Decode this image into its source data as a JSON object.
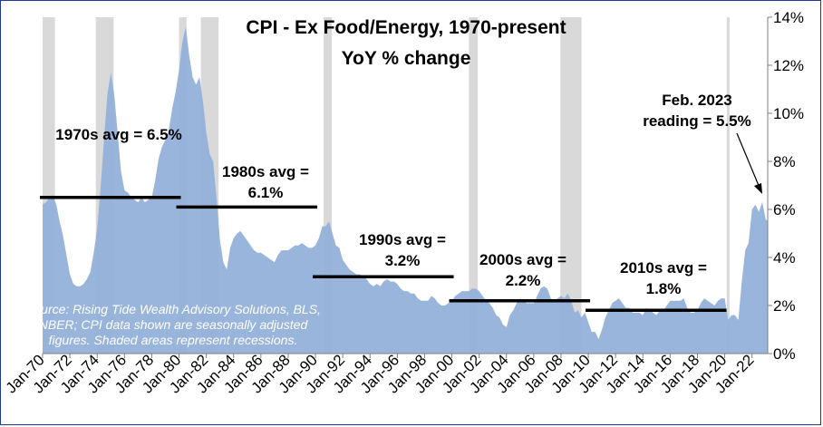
{
  "chart_data": {
    "type": "area",
    "title": "CPI - Ex Food/Energy, 1970-present",
    "subtitle": "YoY % change",
    "x_range": [
      1970.0,
      2023.15
    ],
    "ylim": [
      0,
      14
    ],
    "y_ticks": [
      "0%",
      "2%",
      "4%",
      "6%",
      "8%",
      "10%",
      "12%",
      "14%"
    ],
    "y_tick_values": [
      0,
      2,
      4,
      6,
      8,
      10,
      12,
      14
    ],
    "x_ticks": [
      "Jan-70",
      "Jan-72",
      "Jan-74",
      "Jan-76",
      "Jan-78",
      "Jan-80",
      "Jan-82",
      "Jan-84",
      "Jan-86",
      "Jan-88",
      "Jan-90",
      "Jan-92",
      "Jan-94",
      "Jan-96",
      "Jan-98",
      "Jan-00",
      "Jan-02",
      "Jan-04",
      "Jan-06",
      "Jan-08",
      "Jan-10",
      "Jan-12",
      "Jan-14",
      "Jan-16",
      "Jan-18",
      "Jan-20",
      "Jan-22"
    ],
    "x_tick_values": [
      1970,
      1972,
      1974,
      1976,
      1978,
      1980,
      1982,
      1984,
      1986,
      1988,
      1990,
      1992,
      1994,
      1996,
      1998,
      2000,
      2002,
      2004,
      2006,
      2008,
      2010,
      2012,
      2014,
      2016,
      2018,
      2020,
      2022
    ],
    "series": [
      {
        "values": [
          [
            1970.0,
            6.2
          ],
          [
            1970.25,
            6.3
          ],
          [
            1970.5,
            6.5
          ],
          [
            1970.75,
            6.6
          ],
          [
            1971.0,
            6.2
          ],
          [
            1971.25,
            5.5
          ],
          [
            1971.5,
            4.9
          ],
          [
            1971.75,
            4.1
          ],
          [
            1972.0,
            3.3
          ],
          [
            1972.25,
            2.9
          ],
          [
            1972.5,
            2.8
          ],
          [
            1972.75,
            2.8
          ],
          [
            1973.0,
            2.9
          ],
          [
            1973.25,
            3.1
          ],
          [
            1973.5,
            3.4
          ],
          [
            1973.75,
            4.2
          ],
          [
            1974.0,
            5.2
          ],
          [
            1974.25,
            6.9
          ],
          [
            1974.5,
            8.9
          ],
          [
            1974.75,
            10.8
          ],
          [
            1975.0,
            11.7
          ],
          [
            1975.25,
            10.8
          ],
          [
            1975.5,
            9.2
          ],
          [
            1975.75,
            7.6
          ],
          [
            1976.0,
            6.8
          ],
          [
            1976.25,
            6.7
          ],
          [
            1976.5,
            6.5
          ],
          [
            1976.75,
            6.4
          ],
          [
            1977.0,
            6.3
          ],
          [
            1977.25,
            6.5
          ],
          [
            1977.5,
            6.3
          ],
          [
            1977.75,
            6.4
          ],
          [
            1978.0,
            6.5
          ],
          [
            1978.25,
            7.2
          ],
          [
            1978.5,
            8.1
          ],
          [
            1978.75,
            8.6
          ],
          [
            1979.0,
            8.9
          ],
          [
            1979.25,
            9.3
          ],
          [
            1979.5,
            10.2
          ],
          [
            1979.75,
            10.9
          ],
          [
            1980.0,
            11.8
          ],
          [
            1980.25,
            13.0
          ],
          [
            1980.5,
            13.6
          ],
          [
            1980.75,
            12.4
          ],
          [
            1981.0,
            11.5
          ],
          [
            1981.25,
            11.2
          ],
          [
            1981.5,
            11.5
          ],
          [
            1981.75,
            10.5
          ],
          [
            1982.0,
            9.2
          ],
          [
            1982.25,
            8.3
          ],
          [
            1982.5,
            8.0
          ],
          [
            1982.75,
            6.5
          ],
          [
            1983.0,
            4.7
          ],
          [
            1983.25,
            3.8
          ],
          [
            1983.5,
            3.5
          ],
          [
            1983.75,
            4.4
          ],
          [
            1984.0,
            4.8
          ],
          [
            1984.25,
            5.0
          ],
          [
            1984.5,
            5.1
          ],
          [
            1984.75,
            4.9
          ],
          [
            1985.0,
            4.7
          ],
          [
            1985.25,
            4.5
          ],
          [
            1985.5,
            4.3
          ],
          [
            1985.75,
            4.2
          ],
          [
            1986.0,
            4.2
          ],
          [
            1986.25,
            4.1
          ],
          [
            1986.5,
            4.0
          ],
          [
            1986.75,
            3.9
          ],
          [
            1987.0,
            3.8
          ],
          [
            1987.25,
            4.1
          ],
          [
            1987.5,
            4.3
          ],
          [
            1987.75,
            4.3
          ],
          [
            1988.0,
            4.3
          ],
          [
            1988.25,
            4.4
          ],
          [
            1988.5,
            4.5
          ],
          [
            1988.75,
            4.5
          ],
          [
            1989.0,
            4.6
          ],
          [
            1989.25,
            4.5
          ],
          [
            1989.5,
            4.4
          ],
          [
            1989.75,
            4.4
          ],
          [
            1990.0,
            4.5
          ],
          [
            1990.25,
            4.8
          ],
          [
            1990.5,
            5.3
          ],
          [
            1990.75,
            5.3
          ],
          [
            1991.0,
            5.5
          ],
          [
            1991.25,
            5.0
          ],
          [
            1991.5,
            4.5
          ],
          [
            1991.75,
            4.4
          ],
          [
            1992.0,
            3.9
          ],
          [
            1992.25,
            3.7
          ],
          [
            1992.5,
            3.5
          ],
          [
            1992.75,
            3.4
          ],
          [
            1993.0,
            3.3
          ],
          [
            1993.25,
            3.3
          ],
          [
            1993.5,
            3.2
          ],
          [
            1993.75,
            3.1
          ],
          [
            1994.0,
            2.9
          ],
          [
            1994.25,
            2.8
          ],
          [
            1994.5,
            2.9
          ],
          [
            1994.75,
            2.8
          ],
          [
            1995.0,
            3.0
          ],
          [
            1995.25,
            3.1
          ],
          [
            1995.5,
            3.0
          ],
          [
            1995.75,
            3.0
          ],
          [
            1996.0,
            2.9
          ],
          [
            1996.25,
            2.7
          ],
          [
            1996.5,
            2.6
          ],
          [
            1996.75,
            2.6
          ],
          [
            1997.0,
            2.5
          ],
          [
            1997.25,
            2.5
          ],
          [
            1997.5,
            2.3
          ],
          [
            1997.75,
            2.2
          ],
          [
            1998.0,
            2.2
          ],
          [
            1998.25,
            2.2
          ],
          [
            1998.5,
            2.4
          ],
          [
            1998.75,
            2.3
          ],
          [
            1999.0,
            2.1
          ],
          [
            1999.25,
            2.0
          ],
          [
            1999.5,
            2.0
          ],
          [
            1999.75,
            2.1
          ],
          [
            2000.0,
            2.2
          ],
          [
            2000.25,
            2.4
          ],
          [
            2000.5,
            2.5
          ],
          [
            2000.75,
            2.6
          ],
          [
            2001.0,
            2.6
          ],
          [
            2001.25,
            2.6
          ],
          [
            2001.5,
            2.7
          ],
          [
            2001.75,
            2.7
          ],
          [
            2002.0,
            2.6
          ],
          [
            2002.25,
            2.4
          ],
          [
            2002.5,
            2.2
          ],
          [
            2002.75,
            2.1
          ],
          [
            2003.0,
            1.9
          ],
          [
            2003.25,
            1.6
          ],
          [
            2003.5,
            1.5
          ],
          [
            2003.75,
            1.2
          ],
          [
            2004.0,
            1.1
          ],
          [
            2004.25,
            1.6
          ],
          [
            2004.5,
            1.8
          ],
          [
            2004.75,
            2.1
          ],
          [
            2005.0,
            2.3
          ],
          [
            2005.25,
            2.2
          ],
          [
            2005.5,
            2.1
          ],
          [
            2005.75,
            2.1
          ],
          [
            2006.0,
            2.1
          ],
          [
            2006.25,
            2.4
          ],
          [
            2006.5,
            2.7
          ],
          [
            2006.75,
            2.8
          ],
          [
            2007.0,
            2.7
          ],
          [
            2007.25,
            2.3
          ],
          [
            2007.5,
            2.2
          ],
          [
            2007.75,
            2.3
          ],
          [
            2008.0,
            2.4
          ],
          [
            2008.25,
            2.3
          ],
          [
            2008.5,
            2.5
          ],
          [
            2008.75,
            2.2
          ],
          [
            2009.0,
            1.7
          ],
          [
            2009.25,
            1.8
          ],
          [
            2009.5,
            1.5
          ],
          [
            2009.75,
            1.7
          ],
          [
            2010.0,
            1.3
          ],
          [
            2010.25,
            0.9
          ],
          [
            2010.5,
            0.9
          ],
          [
            2010.75,
            0.6
          ],
          [
            2011.0,
            1.0
          ],
          [
            2011.25,
            1.5
          ],
          [
            2011.5,
            1.8
          ],
          [
            2011.75,
            2.1
          ],
          [
            2012.0,
            2.2
          ],
          [
            2012.25,
            2.3
          ],
          [
            2012.5,
            2.1
          ],
          [
            2012.75,
            1.9
          ],
          [
            2013.0,
            1.9
          ],
          [
            2013.25,
            1.7
          ],
          [
            2013.5,
            1.7
          ],
          [
            2013.75,
            1.7
          ],
          [
            2014.0,
            1.6
          ],
          [
            2014.25,
            1.9
          ],
          [
            2014.5,
            1.8
          ],
          [
            2014.75,
            1.7
          ],
          [
            2015.0,
            1.6
          ],
          [
            2015.25,
            1.8
          ],
          [
            2015.5,
            1.8
          ],
          [
            2015.75,
            2.0
          ],
          [
            2016.0,
            2.2
          ],
          [
            2016.25,
            2.2
          ],
          [
            2016.5,
            2.2
          ],
          [
            2016.75,
            2.2
          ],
          [
            2017.0,
            2.3
          ],
          [
            2017.25,
            1.9
          ],
          [
            2017.5,
            1.7
          ],
          [
            2017.75,
            1.7
          ],
          [
            2018.0,
            1.8
          ],
          [
            2018.25,
            2.1
          ],
          [
            2018.5,
            2.3
          ],
          [
            2018.75,
            2.2
          ],
          [
            2019.0,
            2.1
          ],
          [
            2019.25,
            2.0
          ],
          [
            2019.5,
            2.2
          ],
          [
            2019.75,
            2.3
          ],
          [
            2020.0,
            2.3
          ],
          [
            2020.25,
            1.4
          ],
          [
            2020.5,
            1.6
          ],
          [
            2020.75,
            1.6
          ],
          [
            2021.0,
            1.4
          ],
          [
            2021.25,
            3.0
          ],
          [
            2021.5,
            4.3
          ],
          [
            2021.75,
            4.6
          ],
          [
            2022.0,
            6.0
          ],
          [
            2022.25,
            6.2
          ],
          [
            2022.5,
            5.9
          ],
          [
            2022.75,
            6.3
          ],
          [
            2023.0,
            5.6
          ],
          [
            2023.15,
            5.5
          ]
        ]
      }
    ],
    "recessions": [
      [
        1969.9,
        1970.9
      ],
      [
        1973.9,
        1975.2
      ],
      [
        1980.0,
        1980.55
      ],
      [
        1981.6,
        1982.9
      ],
      [
        1990.6,
        1991.2
      ],
      [
        2001.25,
        2001.9
      ],
      [
        2007.95,
        2009.5
      ],
      [
        2020.15,
        2020.35
      ]
    ],
    "averages": [
      {
        "label": "1970s avg = 6.5%",
        "value": 6.5,
        "from": 1970.0,
        "to": 1980.0
      },
      {
        "label_lines": [
          "1980s avg =",
          "6.1%"
        ],
        "value": 6.1,
        "from": 1980.0,
        "to": 1990.0
      },
      {
        "label_lines": [
          "1990s avg =",
          "3.2%"
        ],
        "value": 3.2,
        "from": 1990.0,
        "to": 2000.0
      },
      {
        "label_lines": [
          "2000s avg =",
          "2.2%"
        ],
        "value": 2.2,
        "from": 2000.0,
        "to": 2010.0
      },
      {
        "label_lines": [
          "2010s avg =",
          "1.8%"
        ],
        "value": 1.8,
        "from": 2010.0,
        "to": 2020.0
      }
    ],
    "callout_lines": [
      "Feb. 2023",
      "reading = 5.5%"
    ],
    "source_lines": [
      "Source: Rising Tide Wealth Advisory Solutions, BLS,",
      "NBER; CPI data shown are seasonally adjusted",
      "figures. Shaded areas represent recessions."
    ],
    "colors": {
      "area": "#93b1d9",
      "recession": "#d9d9d9",
      "avg_line": "#000000",
      "axis": "#7f7f7f"
    },
    "grid": false
  }
}
